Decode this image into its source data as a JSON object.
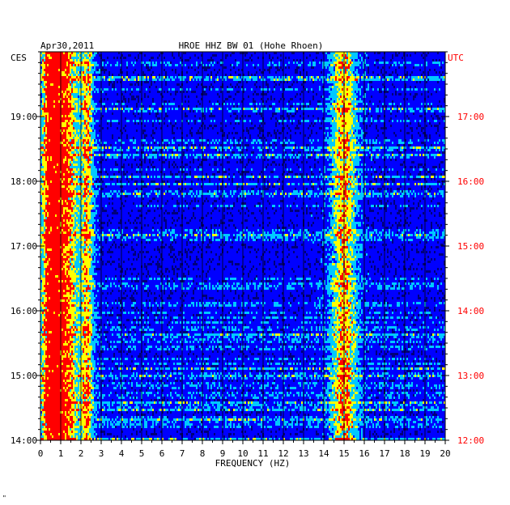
{
  "chart_data": {
    "type": "heatmap",
    "title": "HROE HHZ BW 01 (Hohe Rhoen)",
    "date": "Apr30,2011",
    "xlabel": "FREQUENCY (HZ)",
    "x_ticks": [
      "0",
      "1",
      "2",
      "3",
      "4",
      "5",
      "6",
      "7",
      "8",
      "9",
      "10",
      "11",
      "12",
      "13",
      "14",
      "15",
      "16",
      "17",
      "18",
      "19",
      "20"
    ],
    "xlim": [
      0,
      20
    ],
    "left_axis": {
      "label": "CES",
      "ticks": [
        "19:00",
        "18:00",
        "17:00",
        "16:00",
        "15:00",
        "14:00"
      ],
      "range": [
        "14:00",
        "20:00"
      ]
    },
    "right_axis": {
      "label": "UTC",
      "ticks": [
        "17:00",
        "16:00",
        "15:00",
        "14:00",
        "13:00",
        "12:00"
      ],
      "range": [
        "12:00",
        "18:00"
      ]
    },
    "colormap": [
      "#00007a",
      "#0000ff",
      "#00c8ff",
      "#ffff00",
      "#ff0000"
    ],
    "grid": true,
    "energy_bands_hz": [
      {
        "center": 0.6,
        "width": 0.5,
        "level": "high"
      },
      {
        "center": 1.4,
        "width": 0.5,
        "level": "medium"
      },
      {
        "center": 2.3,
        "width": 0.3,
        "level": "medium"
      },
      {
        "center": 15.0,
        "width": 0.6,
        "level": "medium"
      }
    ]
  },
  "footer_mark": "\""
}
